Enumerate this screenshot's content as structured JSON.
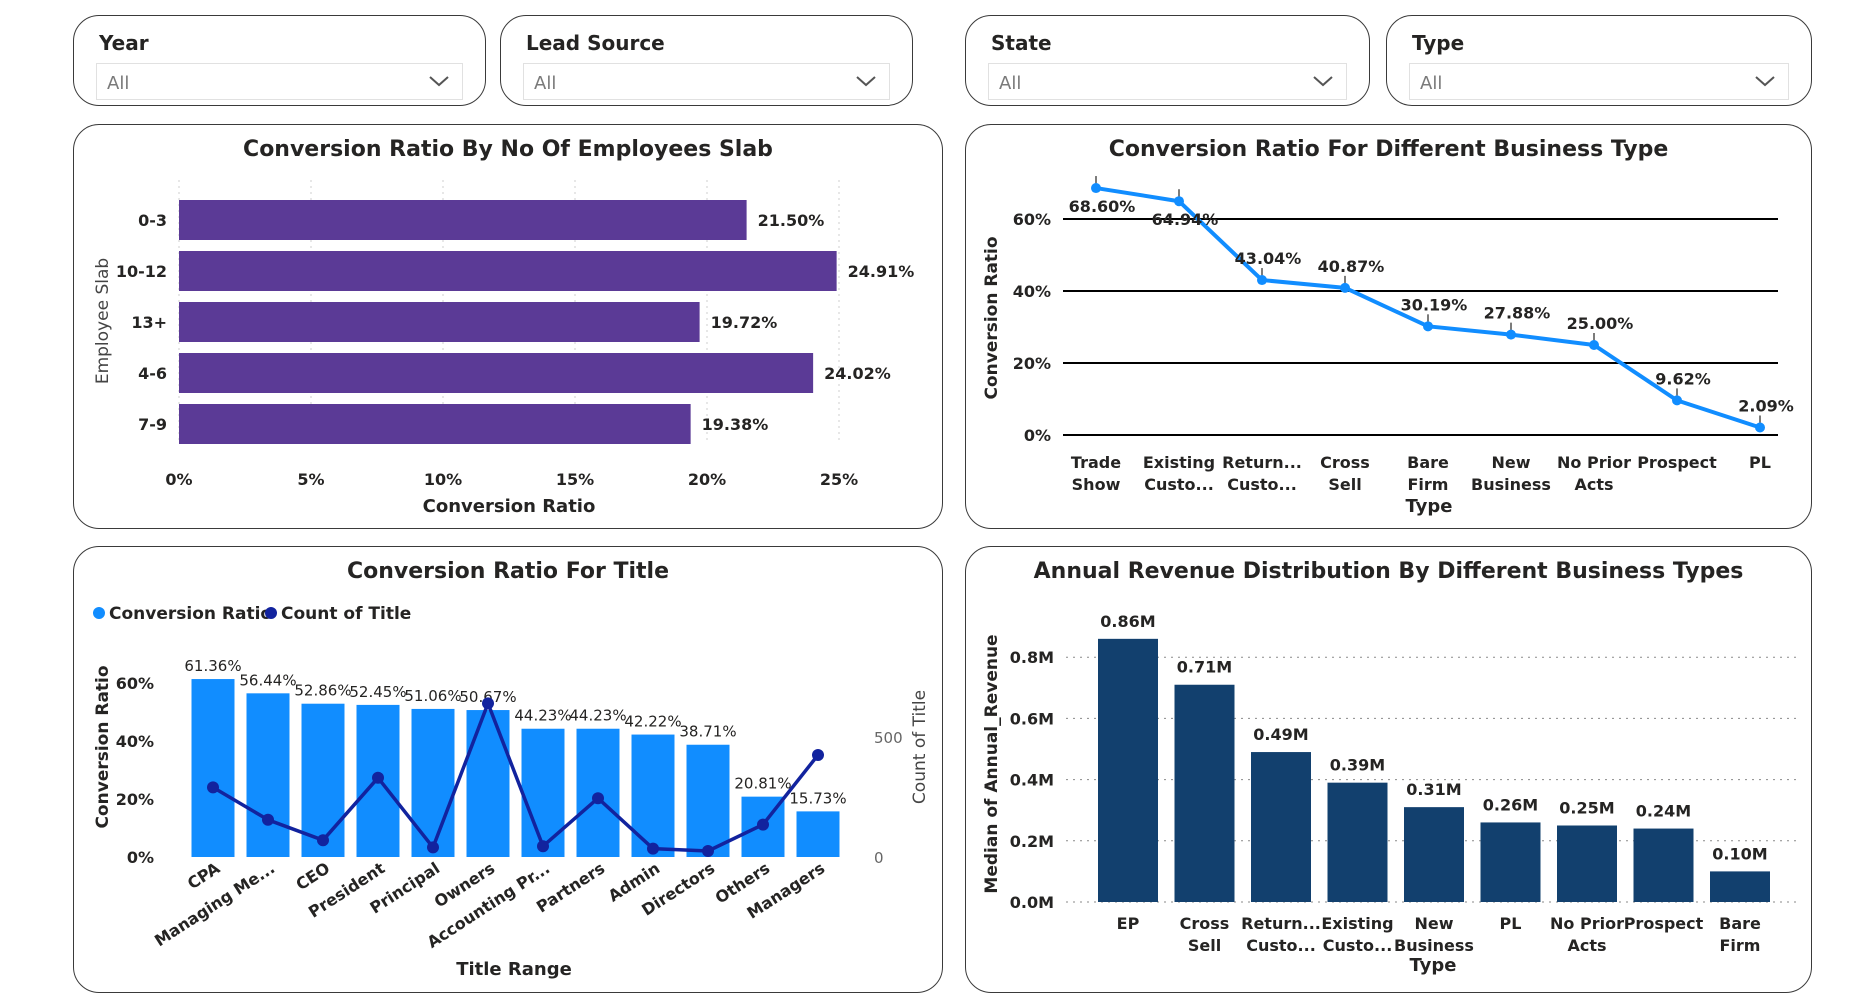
{
  "slicers": [
    {
      "label": "Year",
      "value": "All"
    },
    {
      "label": "Lead Source",
      "value": "All"
    },
    {
      "label": "State",
      "value": "All"
    },
    {
      "label": "Type",
      "value": "All"
    }
  ],
  "panels": {
    "employees": {
      "title": "Conversion Ratio By No Of Employees Slab"
    },
    "business": {
      "title": "Conversion Ratio For Different Business Type"
    },
    "title": {
      "title": "Conversion Ratio For Title"
    },
    "revenue": {
      "title": "Annual Revenue Distribution By Different Business Types"
    }
  },
  "chart_data": [
    {
      "type": "bar",
      "orientation": "horizontal",
      "title": "Conversion Ratio By No Of Employees Slab",
      "xlabel": "Conversion Ratio",
      "ylabel": "Employee Slab",
      "categories": [
        "0-3",
        "10-12",
        "13+",
        "4-6",
        "7-9"
      ],
      "values": [
        21.5,
        24.91,
        19.72,
        24.02,
        19.38
      ],
      "value_labels": [
        "21.50%",
        "24.91%",
        "19.72%",
        "24.02%",
        "19.38%"
      ],
      "x_ticks": [
        "0%",
        "5%",
        "10%",
        "15%",
        "20%",
        "25%"
      ],
      "xlim": [
        0,
        25
      ],
      "color": "#5b3a96",
      "grid": "vertical dotted"
    },
    {
      "type": "line",
      "title": "Conversion Ratio For Different Business Type",
      "xlabel": "Type",
      "ylabel": "Conversion Ratio",
      "categories": [
        [
          "Trade",
          "Show"
        ],
        [
          "Existing",
          "Custo..."
        ],
        [
          "Return...",
          "Custo..."
        ],
        [
          "Cross",
          "Sell"
        ],
        [
          "Bare",
          "Firm"
        ],
        [
          "New",
          "Business"
        ],
        [
          "No Prior",
          "Acts"
        ],
        [
          "Prospect"
        ],
        [
          "PL"
        ]
      ],
      "values": [
        68.6,
        64.94,
        43.04,
        40.87,
        30.19,
        27.88,
        25.0,
        9.62,
        2.09
      ],
      "value_labels": [
        "68.60%",
        "64.94%",
        "43.04%",
        "40.87%",
        "30.19%",
        "27.88%",
        "25.00%",
        "9.62%",
        "2.09%"
      ],
      "y_ticks": [
        "0%",
        "20%",
        "40%",
        "60%"
      ],
      "ylim": [
        0,
        70
      ],
      "color": "#118dff",
      "grid": "horizontal solid"
    },
    {
      "type": "bar",
      "combo": "bar + line",
      "title": "Conversion Ratio For Title",
      "xlabel": "Title Range",
      "ylabel": "Conversion Ratio",
      "y2label": "Count of Title",
      "legend": "top-left",
      "categories": [
        "CPA",
        "Managing Me...",
        "CEO",
        "President",
        "Principal",
        "Owners",
        "Accounting Pr...",
        "Partners",
        "Admin",
        "Directors",
        "Others",
        "Managers"
      ],
      "series": [
        {
          "name": "Conversion Ratio",
          "values": [
            61.36,
            56.44,
            52.86,
            52.45,
            51.06,
            50.67,
            44.23,
            44.23,
            42.22,
            38.71,
            20.81,
            15.73
          ],
          "color": "#118dff",
          "axis": "left"
        },
        {
          "name": "Count of Title",
          "values": [
            290,
            155,
            70,
            330,
            40,
            640,
            45,
            245,
            35,
            25,
            135,
            425
          ],
          "color": "#12239e",
          "axis": "right"
        }
      ],
      "value_labels": [
        "61.36%",
        "56.44%",
        "52.86%",
        "52.45%",
        "51.06%",
        "50.67%",
        "44.23%",
        "44.23%",
        "42.22%",
        "38.71%",
        "20.81%",
        "15.73%"
      ],
      "y_ticks": [
        "0%",
        "20%",
        "40%",
        "60%"
      ],
      "y2_ticks": [
        "0",
        "500"
      ],
      "ylim": [
        0,
        65
      ],
      "y2lim": [
        0,
        650
      ]
    },
    {
      "type": "bar",
      "title": "Annual Revenue Distribution By Different Business Types",
      "xlabel": "Type",
      "ylabel": "Median of Annual_Revenue",
      "categories": [
        [
          "EP"
        ],
        [
          "Cross",
          "Sell"
        ],
        [
          "Return...",
          "Custo..."
        ],
        [
          "Existing",
          "Custo..."
        ],
        [
          "New",
          "Business"
        ],
        [
          "PL"
        ],
        [
          "No Prior",
          "Acts"
        ],
        [
          "Prospect"
        ],
        [
          "Bare",
          "Firm"
        ]
      ],
      "values": [
        0.86,
        0.71,
        0.49,
        0.39,
        0.31,
        0.26,
        0.25,
        0.24,
        0.1
      ],
      "value_labels": [
        "0.86M",
        "0.71M",
        "0.49M",
        "0.39M",
        "0.31M",
        "0.26M",
        "0.25M",
        "0.24M",
        "0.10M"
      ],
      "y_ticks": [
        "0.0M",
        "0.2M",
        "0.4M",
        "0.6M",
        "0.8M"
      ],
      "ylim": [
        0,
        0.9
      ],
      "color": "#12406e",
      "grid": "horizontal dotted"
    }
  ]
}
